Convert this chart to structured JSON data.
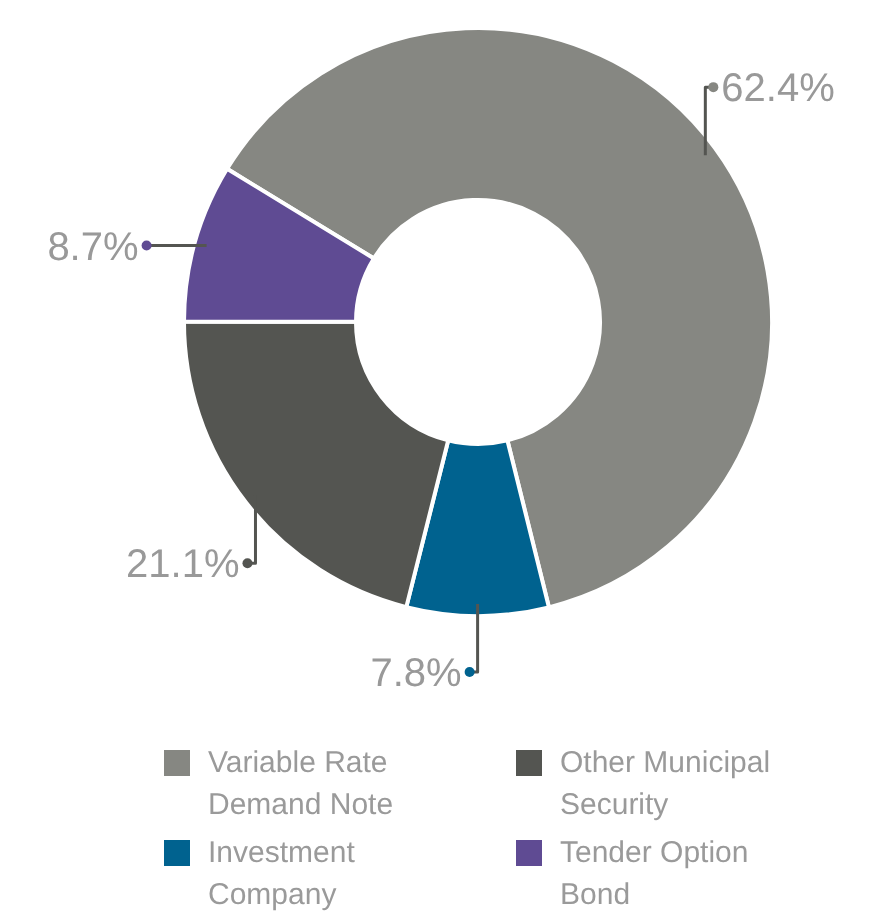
{
  "chart_data": {
    "type": "donut",
    "categories": [
      "Variable Rate Demand Note",
      "Investment Company",
      "Other Municipal Security",
      "Tender Option Bond"
    ],
    "values": [
      62.4,
      7.8,
      21.1,
      8.7
    ],
    "colors": [
      "#868782",
      "#00628f",
      "#545551",
      "#5f4b93"
    ],
    "value_labels": [
      "62.4%",
      "7.8%",
      "21.1%",
      "8.7%"
    ],
    "legend": "bottom"
  }
}
